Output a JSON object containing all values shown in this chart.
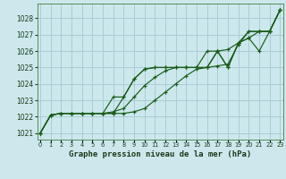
{
  "title": "Graphe pression niveau de la mer (hPa)",
  "bg_color": "#cce8ec",
  "grid_color": "#aaccd4",
  "line_color": "#1a5c1a",
  "xlim": [
    -0.3,
    23.3
  ],
  "ylim": [
    1020.6,
    1028.9
  ],
  "yticks": [
    1021,
    1022,
    1023,
    1024,
    1025,
    1026,
    1027,
    1028
  ],
  "xticks": [
    0,
    1,
    2,
    3,
    4,
    5,
    6,
    7,
    8,
    9,
    10,
    11,
    12,
    13,
    14,
    15,
    16,
    17,
    18,
    19,
    20,
    21,
    22,
    23
  ],
  "series": [
    [
      1021.0,
      1022.1,
      1022.2,
      1022.2,
      1022.2,
      1022.2,
      1022.2,
      1022.2,
      1022.2,
      1022.3,
      1022.5,
      1023.0,
      1023.5,
      1024.0,
      1024.5,
      1024.9,
      1025.0,
      1025.1,
      1025.2,
      1026.4,
      1027.2,
      1027.2,
      1027.2,
      1028.5
    ],
    [
      1021.0,
      1022.1,
      1022.2,
      1022.2,
      1022.2,
      1022.2,
      1022.2,
      1022.3,
      1022.5,
      1023.2,
      1023.9,
      1024.4,
      1024.8,
      1025.0,
      1025.0,
      1025.0,
      1025.0,
      1026.0,
      1026.1,
      1026.5,
      1026.8,
      1027.2,
      1027.2,
      1028.5
    ],
    [
      1021.0,
      1022.1,
      1022.2,
      1022.2,
      1022.2,
      1022.2,
      1022.2,
      1023.2,
      1023.2,
      1024.3,
      1024.9,
      1025.0,
      1025.0,
      1025.0,
      1025.0,
      1025.0,
      1025.0,
      1026.0,
      1025.0,
      1026.5,
      1026.8,
      1026.0,
      1027.2,
      1028.5
    ],
    [
      1021.0,
      1022.1,
      1022.2,
      1022.2,
      1022.2,
      1022.2,
      1022.2,
      1022.2,
      1023.2,
      1024.3,
      1024.9,
      1025.0,
      1025.0,
      1025.0,
      1025.0,
      1025.0,
      1026.0,
      1026.0,
      1025.0,
      1026.5,
      1027.2,
      1027.2,
      1027.2,
      1028.5
    ]
  ]
}
